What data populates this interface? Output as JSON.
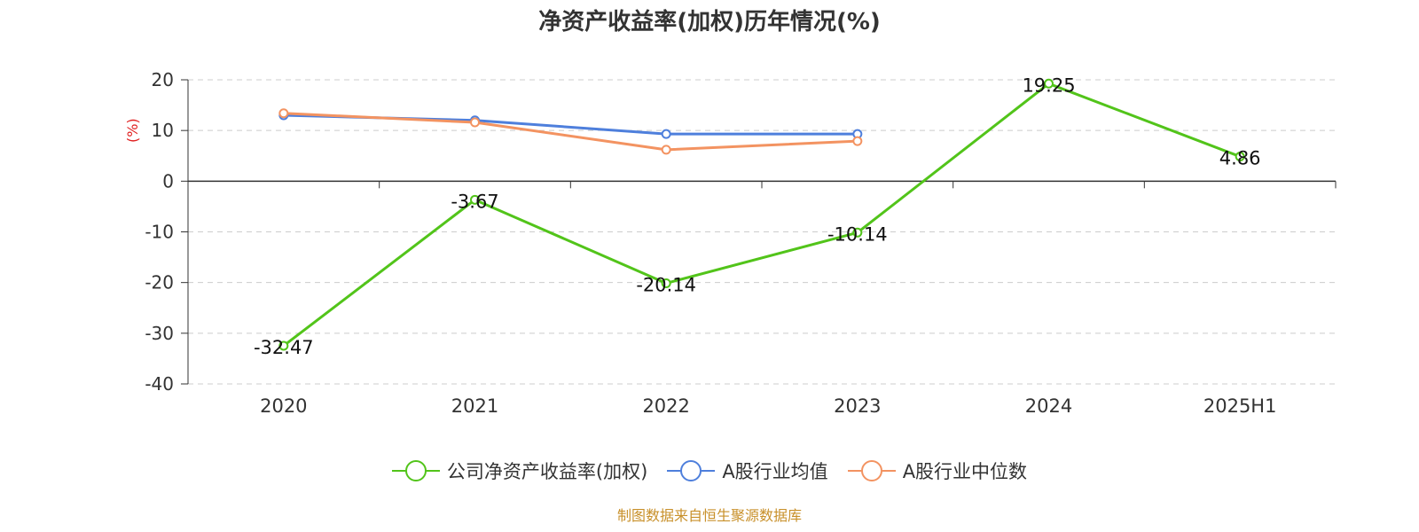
{
  "chart_data": {
    "type": "line",
    "title": "净资产收益率(加权)历年情况(%)",
    "ylabel": "(%)",
    "xlabel": "",
    "categories": [
      "2020",
      "2021",
      "2022",
      "2023",
      "2024",
      "2025H1"
    ],
    "ylim": [
      -40,
      20
    ],
    "yticks": [
      20,
      10,
      0,
      -10,
      -20,
      -30,
      -40
    ],
    "grid": true,
    "legend_position": "bottom",
    "series": [
      {
        "name": "公司净资产收益率(加权)",
        "color": "#52c41a",
        "values": [
          -32.47,
          -3.67,
          -20.14,
          -10.14,
          19.25,
          4.86
        ],
        "labels": [
          "-32.47",
          "-3.67",
          "-20.14",
          "-10.14",
          "19.25",
          "4.86"
        ]
      },
      {
        "name": "A股行业均值",
        "color": "#4e7fdc",
        "values": [
          13.0,
          12.0,
          9.3,
          9.3,
          null,
          null
        ]
      },
      {
        "name": "A股行业中位数",
        "color": "#f39361",
        "values": [
          13.4,
          11.6,
          6.2,
          7.9,
          null,
          null
        ]
      }
    ]
  },
  "source_note": "制图数据来自恒生聚源数据库"
}
